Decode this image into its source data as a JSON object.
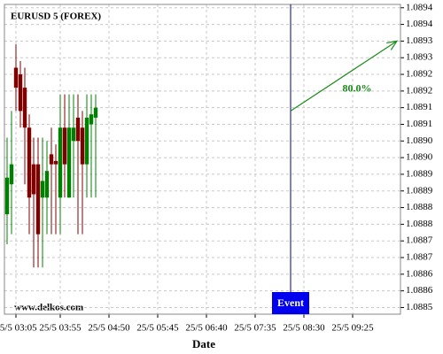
{
  "chart_data": {
    "type": "candlestick",
    "title": "EURUSD 5 (FOREX)",
    "x_label": "Date",
    "watermark": "www.delkos.com",
    "candles": {
      "x": [
        "25/5 02:55",
        "25/5 03:00",
        "25/5 03:05",
        "25/5 03:10",
        "25/5 03:15",
        "25/5 03:20",
        "25/5 03:25",
        "25/5 03:30",
        "25/5 03:35",
        "25/5 03:40",
        "25/5 03:45",
        "25/5 03:50",
        "25/5 03:55",
        "25/5 04:00",
        "25/5 04:05",
        "25/5 04:10",
        "25/5 04:15",
        "25/5 04:20",
        "25/5 04:25",
        "25/5 04:30",
        "25/5 04:35"
      ],
      "open": [
        1.08878,
        1.08887,
        1.08922,
        1.0892,
        1.08916,
        1.08904,
        1.08893,
        1.08893,
        1.08883,
        1.08883,
        1.08896,
        1.08894,
        1.08883,
        1.08904,
        1.08883,
        1.089,
        1.08907,
        1.08904,
        1.08893,
        1.08905,
        1.08907
      ],
      "high": [
        1.08901,
        1.08909,
        1.08929,
        1.08924,
        1.08922,
        1.08908,
        1.08901,
        1.08901,
        1.08901,
        1.089,
        1.08904,
        1.08899,
        1.08914,
        1.08914,
        1.08914,
        1.08914,
        1.08914,
        1.08909,
        1.08914,
        1.08914,
        1.08914
      ],
      "low": [
        1.08869,
        1.08872,
        1.08909,
        1.08904,
        1.08887,
        1.08872,
        1.08862,
        1.08862,
        1.08862,
        1.08872,
        1.08872,
        1.08872,
        1.08872,
        1.08883,
        1.08883,
        1.08883,
        1.08872,
        1.08872,
        1.08883,
        1.08883,
        1.08883
      ],
      "close": [
        1.08889,
        1.08893,
        1.08916,
        1.08909,
        1.08904,
        1.08883,
        1.08884,
        1.08872,
        1.08888,
        1.08891,
        1.08893,
        1.08893,
        1.08904,
        1.08893,
        1.08904,
        1.08904,
        1.089,
        1.08893,
        1.08907,
        1.08908,
        1.0891
      ]
    },
    "up_color": "#008000",
    "down_color": "#800000",
    "event": {
      "label": "Event",
      "x": "25/5 08:15",
      "color": "#0000ee"
    },
    "projection": {
      "x": [
        "25/5 08:15",
        "25/5 10:15"
      ],
      "y": [
        1.08909,
        1.0893
      ],
      "label": "80.0%",
      "color": "#1a8c1a"
    },
    "xlim": [
      "25/5 02:52",
      "25/5 10:19"
    ],
    "xticks": [
      "25/5 03:05",
      "25/5 03:55",
      "25/5 04:50",
      "25/5 05:45",
      "25/5 06:40",
      "25/5 07:35",
      "25/5 08:30",
      "25/5 09:25"
    ],
    "ylim": [
      1.08848,
      1.08941
    ],
    "yticks": [
      1.0885,
      {
        "value": 1.08855,
        "label": "1.0886"
      },
      1.0886,
      {
        "value": 1.08865,
        "label": "1.0887"
      },
      1.0887,
      {
        "value": 1.08875,
        "label": "1.0888"
      },
      1.0888,
      {
        "value": 1.08885,
        "label": "1.0889"
      },
      1.0889,
      {
        "value": 1.08895,
        "label": "1.0890"
      },
      {
        "value": 1.089,
        "label": "1.0890"
      },
      {
        "value": 1.08905,
        "label": "1.0891"
      },
      1.0891,
      {
        "value": 1.08915,
        "label": "1.0892"
      },
      1.0892,
      {
        "value": 1.08925,
        "label": "1.0893"
      },
      1.0893,
      {
        "value": 1.08935,
        "label": "1.0894"
      },
      1.0894
    ],
    "grid": true
  }
}
